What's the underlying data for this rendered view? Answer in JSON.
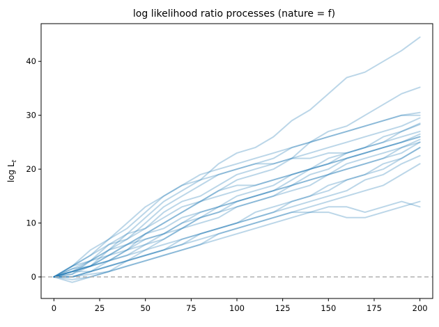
{
  "chart_data": {
    "type": "line",
    "title": "log likelihood ratio processes (nature = f)",
    "xlabel": "",
    "ylabel": "log L",
    "ylabel_subscript": "t",
    "xlim": [
      -7,
      207
    ],
    "ylim": [
      -4,
      47
    ],
    "xticks": [
      0,
      25,
      50,
      75,
      100,
      125,
      150,
      175,
      200
    ],
    "yticks": [
      0,
      10,
      20,
      30,
      40
    ],
    "grid": false,
    "line_color": "#1f77b4",
    "line_opacity": 0.3,
    "reference_line": {
      "y": 0,
      "color": "#b0b0b0",
      "style": "dashed"
    },
    "series": [
      {
        "x": [
          0,
          10,
          20,
          30,
          40,
          50,
          60,
          70,
          80,
          90,
          100,
          110,
          120,
          130,
          140,
          150,
          160,
          170,
          180,
          190,
          200
        ],
        "values": [
          0,
          1.5,
          2,
          5,
          8,
          11,
          14,
          16,
          18,
          21,
          23,
          24,
          26,
          29,
          31,
          34,
          37,
          38,
          40,
          42,
          44.5
        ]
      },
      {
        "x": [
          0,
          10,
          20,
          30,
          40,
          50,
          60,
          70,
          80,
          90,
          100,
          110,
          120,
          130,
          140,
          150,
          160,
          170,
          180,
          190,
          200
        ],
        "values": [
          0,
          0.5,
          3,
          6,
          8,
          9,
          12,
          14,
          15,
          17,
          19,
          20,
          21,
          22,
          25,
          27,
          28,
          30,
          32,
          34,
          35.2
        ]
      },
      {
        "x": [
          0,
          10,
          20,
          30,
          40,
          50,
          60,
          70,
          80,
          90,
          100,
          110,
          120,
          130,
          140,
          150,
          160,
          170,
          180,
          190,
          200
        ],
        "values": [
          0,
          2,
          4,
          6,
          7,
          10,
          13,
          15,
          17,
          19,
          20,
          21,
          22,
          24,
          25,
          26,
          27,
          28,
          29,
          30,
          30.5
        ]
      },
      {
        "x": [
          0,
          10,
          20,
          30,
          40,
          50,
          60,
          70,
          80,
          90,
          100,
          110,
          120,
          130,
          140,
          150,
          160,
          170,
          180,
          190,
          200
        ],
        "values": [
          0,
          1,
          2,
          3,
          5,
          8,
          10,
          12,
          14,
          16,
          18,
          19,
          20,
          22,
          23,
          24,
          25,
          26,
          27,
          28,
          29.5
        ]
      },
      {
        "x": [
          0,
          10,
          20,
          30,
          40,
          50,
          60,
          70,
          80,
          90,
          100,
          110,
          120,
          130,
          140,
          150,
          160,
          170,
          180,
          190,
          200
        ],
        "values": [
          0,
          0,
          1,
          2,
          3,
          5,
          7,
          9,
          11,
          13,
          14,
          15,
          16,
          18,
          20,
          21,
          23,
          24,
          25,
          27,
          28.3
        ]
      },
      {
        "x": [
          0,
          10,
          20,
          30,
          40,
          50,
          60,
          70,
          80,
          90,
          100,
          110,
          120,
          130,
          140,
          150,
          160,
          170,
          180,
          190,
          200
        ],
        "values": [
          0,
          1.5,
          3,
          5,
          6,
          7,
          8,
          10,
          11,
          12,
          14,
          15,
          16,
          17,
          19,
          20,
          22,
          23,
          24,
          25,
          26.5
        ]
      },
      {
        "x": [
          0,
          10,
          20,
          30,
          40,
          50,
          60,
          70,
          80,
          90,
          100,
          110,
          120,
          130,
          140,
          150,
          160,
          170,
          180,
          190,
          200
        ],
        "values": [
          0,
          0.5,
          2,
          4,
          5,
          6,
          8,
          9,
          11,
          12,
          13,
          14,
          15,
          17,
          18,
          19,
          21,
          22,
          23,
          24,
          25.5
        ]
      },
      {
        "x": [
          0,
          10,
          20,
          30,
          40,
          50,
          60,
          70,
          80,
          90,
          100,
          110,
          120,
          130,
          140,
          150,
          160,
          170,
          180,
          190,
          200
        ],
        "values": [
          0,
          1,
          2,
          3,
          4,
          6,
          7,
          9,
          10,
          11,
          13,
          14,
          15,
          16,
          17,
          19,
          20,
          21,
          22,
          24,
          25
        ]
      },
      {
        "x": [
          0,
          10,
          20,
          30,
          40,
          50,
          60,
          70,
          80,
          90,
          100,
          110,
          120,
          130,
          140,
          150,
          160,
          170,
          180,
          190,
          200
        ],
        "values": [
          0,
          -0.5,
          0,
          1,
          3,
          4,
          5,
          6,
          8,
          9,
          10,
          11,
          12,
          14,
          15,
          16,
          18,
          19,
          21,
          22,
          24
        ]
      },
      {
        "x": [
          0,
          10,
          20,
          30,
          40,
          50,
          60,
          70,
          80,
          90,
          100,
          110,
          120,
          130,
          140,
          150,
          160,
          170,
          180,
          190,
          200
        ],
        "values": [
          0,
          1,
          1,
          2,
          3,
          4,
          5,
          7,
          8,
          9,
          10,
          11,
          12,
          13,
          14,
          15,
          16,
          18,
          19,
          21,
          22.5
        ]
      },
      {
        "x": [
          0,
          10,
          20,
          30,
          40,
          50,
          60,
          70,
          80,
          90,
          100,
          110,
          120,
          130,
          140,
          150,
          160,
          170,
          180,
          190,
          200
        ],
        "values": [
          0,
          0,
          0.5,
          1,
          2,
          3,
          4,
          5,
          6,
          8,
          9,
          10,
          11,
          12,
          13,
          14,
          15,
          16,
          17,
          19,
          21
        ]
      },
      {
        "x": [
          0,
          10,
          20,
          30,
          40,
          50,
          60,
          70,
          80,
          90,
          100,
          110,
          120,
          130,
          140,
          150,
          160,
          170,
          180,
          190,
          200
        ],
        "values": [
          0,
          2,
          4,
          7,
          9,
          12,
          15,
          17,
          18,
          19,
          20,
          21,
          21,
          22,
          22,
          23,
          23,
          24,
          25,
          26,
          27
        ]
      },
      {
        "x": [
          0,
          10,
          20,
          30,
          40,
          50,
          60,
          70,
          80,
          90,
          100,
          110,
          120,
          130,
          140,
          150,
          160,
          170,
          180,
          190,
          200
        ],
        "values": [
          0,
          1,
          3,
          5,
          7,
          9,
          11,
          13,
          14,
          16,
          17,
          17,
          18,
          19,
          20,
          21,
          22,
          23,
          24,
          25,
          26
        ]
      },
      {
        "x": [
          0,
          10,
          20,
          30,
          40,
          50,
          60,
          70,
          80,
          90,
          100,
          110,
          120,
          130,
          140,
          150,
          160,
          170,
          180,
          190,
          200
        ],
        "values": [
          0,
          0,
          1,
          2,
          3,
          4,
          5,
          6,
          7,
          8,
          9,
          10,
          11,
          12,
          12,
          13,
          13,
          12,
          13,
          14,
          13
        ]
      },
      {
        "x": [
          0,
          10,
          20,
          30,
          40,
          50,
          60,
          70,
          80,
          90,
          100,
          110,
          120,
          130,
          140,
          150,
          160,
          170,
          180,
          190,
          200
        ],
        "values": [
          0,
          -1,
          0,
          1,
          2,
          3,
          4,
          5,
          6,
          7,
          8,
          9,
          10,
          11,
          12,
          12,
          11,
          11,
          12,
          13,
          14
        ]
      },
      {
        "x": [
          0,
          10,
          20,
          30,
          40,
          50,
          60,
          70,
          80,
          90,
          100,
          110,
          120,
          130,
          140,
          150,
          160,
          170,
          180,
          190,
          200
        ],
        "values": [
          0,
          1,
          2,
          3,
          4,
          5,
          6,
          7,
          8,
          9,
          10,
          12,
          13,
          14,
          15,
          17,
          18,
          19,
          20,
          22,
          24
        ]
      },
      {
        "x": [
          0,
          10,
          20,
          30,
          40,
          50,
          60,
          70,
          80,
          90,
          100,
          110,
          120,
          130,
          140,
          150,
          160,
          170,
          180,
          190,
          200
        ],
        "values": [
          0,
          2,
          3,
          4,
          6,
          8,
          10,
          12,
          14,
          15,
          16,
          17,
          18,
          19,
          20,
          21,
          22,
          23,
          24,
          25,
          26
        ]
      },
      {
        "x": [
          0,
          10,
          20,
          30,
          40,
          50,
          60,
          70,
          80,
          90,
          100,
          110,
          120,
          130,
          140,
          150,
          160,
          170,
          180,
          190,
          200
        ],
        "values": [
          0,
          1,
          2,
          4,
          6,
          8,
          9,
          11,
          12,
          13,
          14,
          15,
          16,
          17,
          18,
          19,
          20,
          21,
          22,
          23,
          25
        ]
      },
      {
        "x": [
          0,
          10,
          20,
          30,
          40,
          50,
          60,
          70,
          80,
          90,
          100,
          110,
          120,
          130,
          140,
          150,
          160,
          170,
          180,
          190,
          200
        ],
        "values": [
          0,
          0,
          1,
          3,
          5,
          7,
          8,
          10,
          12,
          13,
          15,
          16,
          17,
          19,
          20,
          22,
          23,
          24,
          26,
          27,
          28.5
        ]
      },
      {
        "x": [
          0,
          10,
          20,
          30,
          40,
          50,
          60,
          70,
          80,
          90,
          100,
          110,
          120,
          130,
          140,
          150,
          160,
          170,
          180,
          190,
          200
        ],
        "values": [
          0,
          2,
          5,
          7,
          10,
          13,
          15,
          17,
          19,
          20,
          21,
          22,
          23,
          24,
          25,
          26,
          27,
          28,
          29,
          30,
          30
        ]
      }
    ]
  }
}
